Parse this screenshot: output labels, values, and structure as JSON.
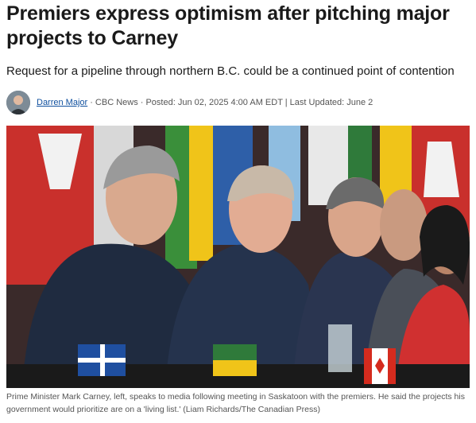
{
  "header": {
    "title": "Premiers express optimism after pitching major projects to Carney",
    "subtitle": "Request for a pipeline through northern B.C. could be a continued point of contention"
  },
  "byline": {
    "author": "Darren Major",
    "details": "· CBC News · Posted: Jun 02, 2025 4:00 AM EDT | Last Updated: June 2"
  },
  "photo": {
    "caption": "Prime Minister Mark Carney, left, speaks to media following meeting in Saskatoon with the premiers. He said the projects his government would prioritize are on a 'living list.' (Liam Richards/The Canadian Press)"
  }
}
